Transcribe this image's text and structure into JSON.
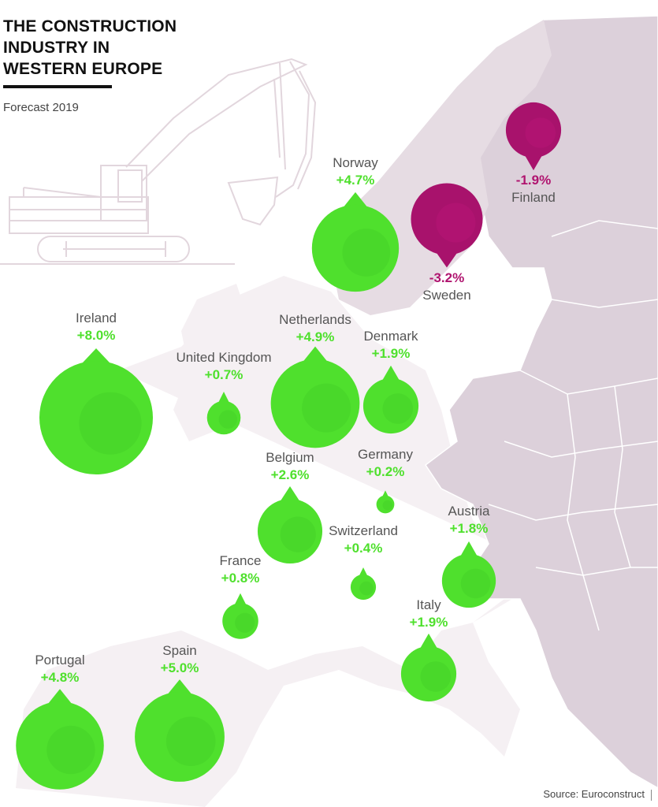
{
  "title": "THE CONSTRUCTION\nINDUSTRY IN\nWESTERN EUROPE",
  "subtitle": "Forecast 2019",
  "source": "Source: Euroconstruct",
  "colors": {
    "positive": "#4fe02d",
    "negative": "#a8126c",
    "land": "#dcd0da",
    "land_light": "#f3eef2",
    "border": "#ffffff"
  },
  "countries": [
    {
      "name": "Norway",
      "value": "+4.7%",
      "change": 4.7
    },
    {
      "name": "Sweden",
      "value": "-3.2%",
      "change": -3.2
    },
    {
      "name": "Finland",
      "value": "-1.9%",
      "change": -1.9
    },
    {
      "name": "Ireland",
      "value": "+8.0%",
      "change": 8.0
    },
    {
      "name": "United Kingdom",
      "value": "+0.7%",
      "change": 0.7
    },
    {
      "name": "Netherlands",
      "value": "+4.9%",
      "change": 4.9
    },
    {
      "name": "Denmark",
      "value": "+1.9%",
      "change": 1.9
    },
    {
      "name": "Belgium",
      "value": "+2.6%",
      "change": 2.6
    },
    {
      "name": "Germany",
      "value": "+0.2%",
      "change": 0.2
    },
    {
      "name": "Austria",
      "value": "+1.8%",
      "change": 1.8
    },
    {
      "name": "Switzerland",
      "value": "+0.4%",
      "change": 0.4
    },
    {
      "name": "France",
      "value": "+0.8%",
      "change": 0.8
    },
    {
      "name": "Italy",
      "value": "+1.9%",
      "change": 1.9
    },
    {
      "name": "Portugal",
      "value": "+4.8%",
      "change": 4.8
    },
    {
      "name": "Spain",
      "value": "+5.0%",
      "change": 5.0
    }
  ]
}
